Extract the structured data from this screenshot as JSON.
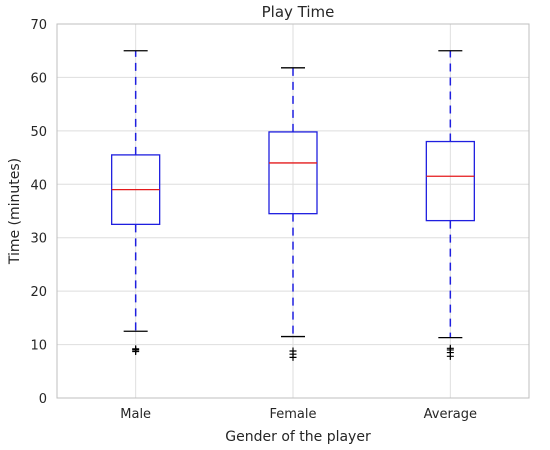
{
  "chart_data": {
    "type": "box",
    "title": "Play Time",
    "xlabel": "Gender of the player",
    "ylabel": "Time (minutes)",
    "ylim": [
      0,
      70
    ],
    "yticks": [
      0,
      10,
      20,
      30,
      40,
      50,
      60,
      70
    ],
    "grid": true,
    "categories": [
      "Male",
      "Female",
      "Average"
    ],
    "boxes": [
      {
        "category": "Male",
        "whisker_low": 12.5,
        "q1": 32.5,
        "median": 39.0,
        "q3": 45.5,
        "whisker_high": 65.0,
        "fliers": [
          8.7,
          9.0,
          9.2
        ]
      },
      {
        "category": "Female",
        "whisker_low": 11.5,
        "q1": 34.5,
        "median": 44.0,
        "q3": 49.8,
        "whisker_high": 61.8,
        "fliers": [
          7.6,
          8.2,
          8.8
        ]
      },
      {
        "category": "Average",
        "whisker_low": 11.3,
        "q1": 33.2,
        "median": 41.5,
        "q3": 48.0,
        "whisker_high": 65.0,
        "fliers": [
          7.8,
          8.5,
          9.0,
          9.3
        ]
      }
    ],
    "colors": {
      "box": "#1f1fdf",
      "median": "#e41a1c",
      "cap": "#000000",
      "grid": "#dedede"
    }
  }
}
